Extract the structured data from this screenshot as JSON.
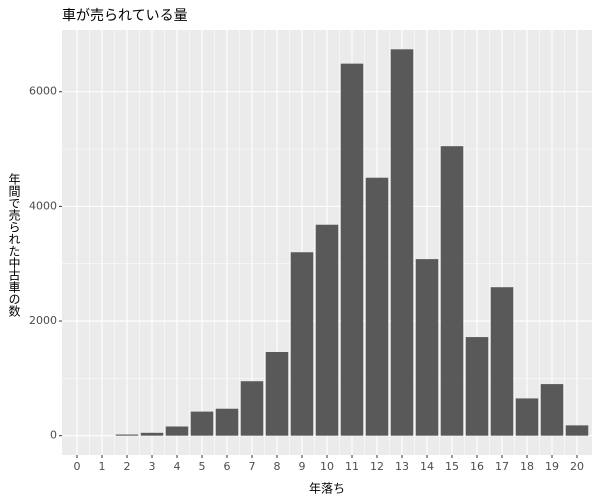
{
  "chart_data": {
    "type": "bar",
    "title": "車が売られている量",
    "x_label": "年落ち",
    "y_label": "年間で売られた中古車の数",
    "x": [
      0,
      1,
      2,
      3,
      4,
      5,
      6,
      7,
      8,
      9,
      10,
      11,
      12,
      13,
      14,
      15,
      16,
      17,
      18,
      19,
      20
    ],
    "values": [
      0,
      0,
      20,
      50,
      160,
      420,
      470,
      950,
      1460,
      3200,
      3680,
      6490,
      4500,
      6740,
      3080,
      5050,
      1720,
      2590,
      650,
      900,
      180
    ],
    "color": "#595959",
    "xlim": [
      -0.6,
      20.6
    ],
    "xticks": [
      0,
      1,
      2,
      3,
      4,
      5,
      6,
      7,
      8,
      9,
      10,
      11,
      12,
      13,
      14,
      15,
      16,
      17,
      18,
      19,
      20
    ],
    "ylim": [
      -337,
      7077
    ],
    "yticks": [
      0,
      2000,
      4000,
      6000
    ],
    "grid": true
  }
}
